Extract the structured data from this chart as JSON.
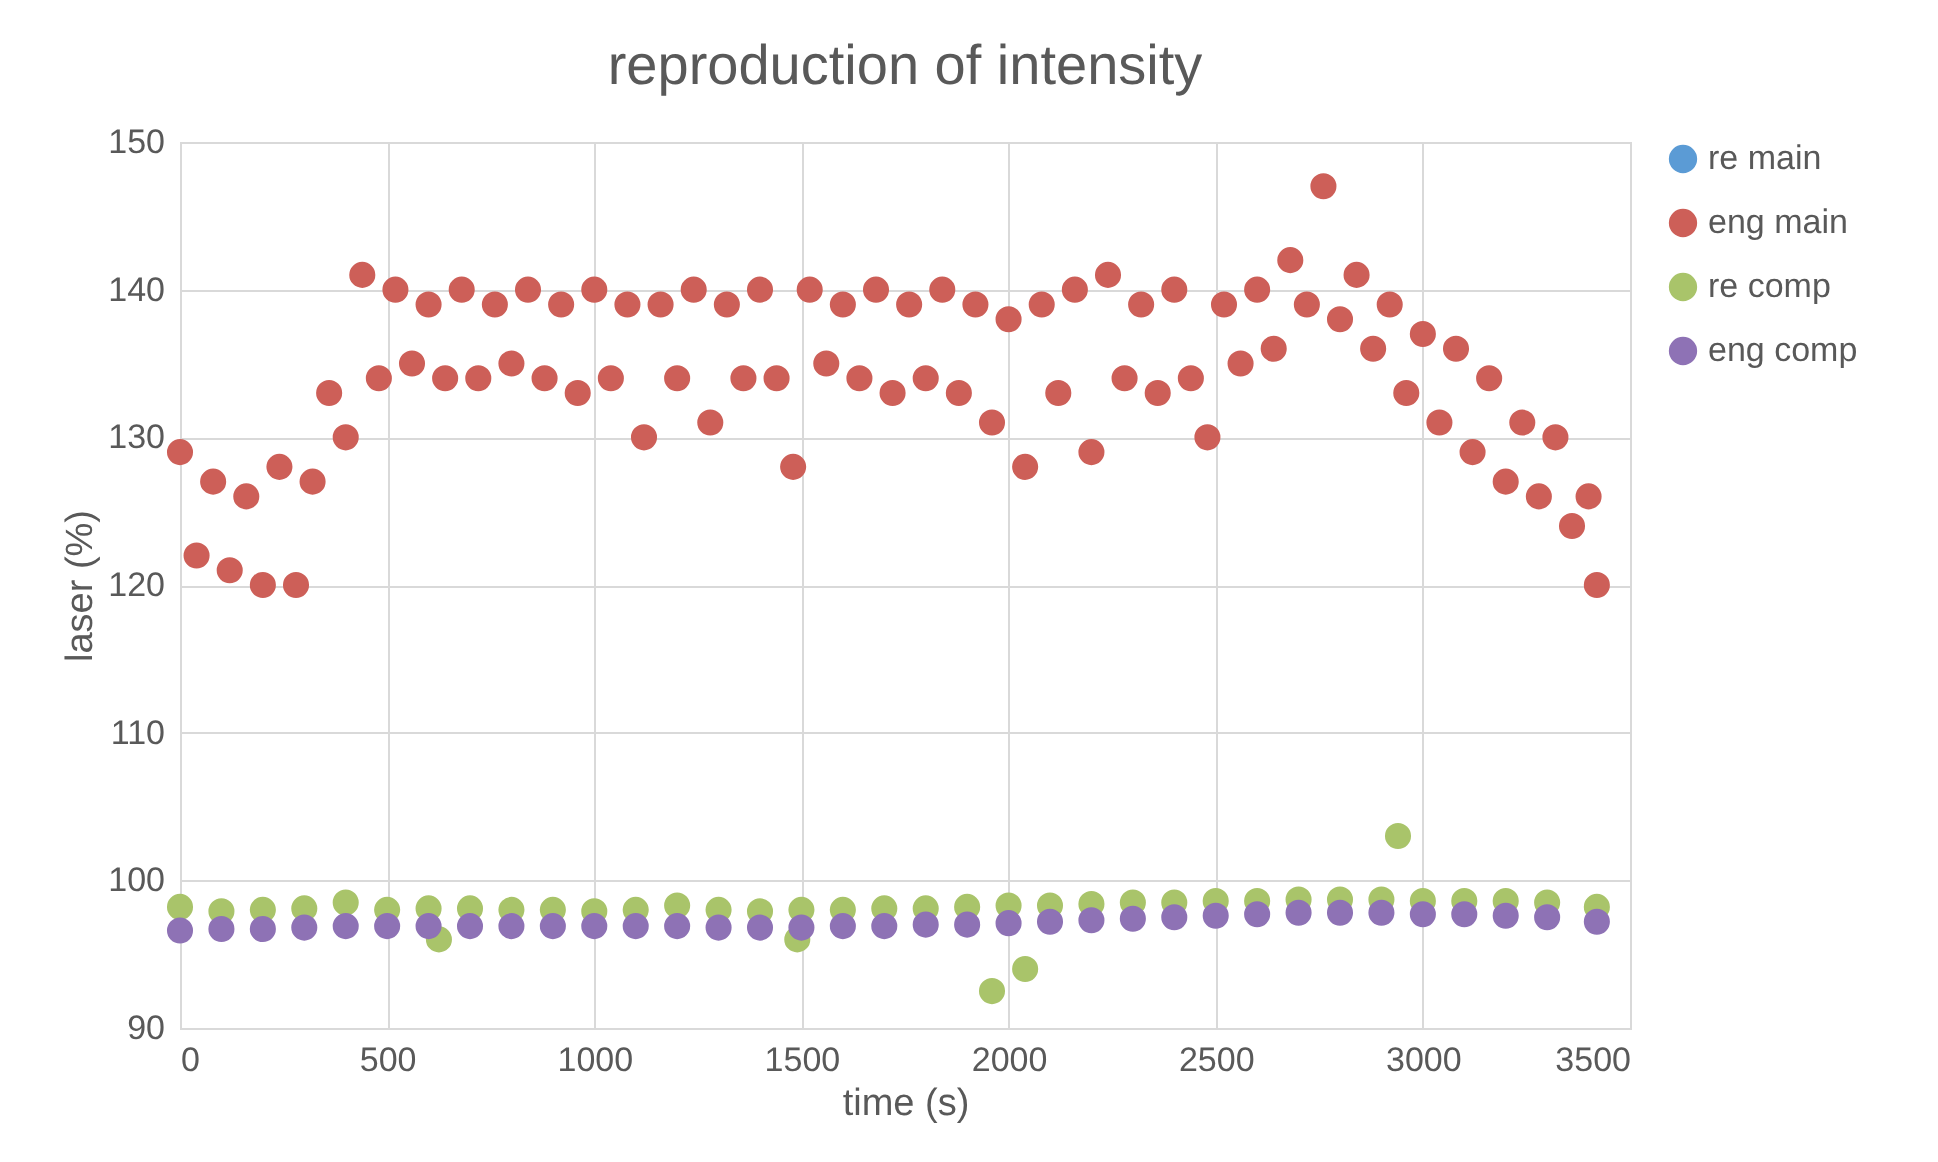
{
  "chart_data": {
    "type": "scatter",
    "title": "reproduction of intensity",
    "xlabel": "time (s)",
    "ylabel": "laser (%)",
    "xlim": [
      0,
      3500
    ],
    "xticks": [
      0,
      500,
      1000,
      1500,
      2000,
      2500,
      3000,
      3500
    ],
    "ylim": [
      90,
      150
    ],
    "yticks": [
      90,
      100,
      110,
      120,
      130,
      140,
      150
    ],
    "grid": true,
    "legend": "right",
    "marker": "circle",
    "series": [
      {
        "name": "re main",
        "color": "#5b9bd5"
      },
      {
        "name": "eng main",
        "color": "#cd5f58",
        "x": [
          0,
          40,
          80,
          120,
          160,
          200,
          240,
          280,
          320,
          360,
          400,
          440,
          480,
          520,
          560,
          600,
          640,
          680,
          720,
          760,
          800,
          840,
          880,
          920,
          960,
          1000,
          1040,
          1080,
          1120,
          1160,
          1200,
          1240,
          1280,
          1320,
          1360,
          1400,
          1440,
          1480,
          1520,
          1560,
          1600,
          1640,
          1680,
          1720,
          1760,
          1800,
          1840,
          1880,
          1920,
          1960,
          2000,
          2040,
          2080,
          2120,
          2160,
          2200,
          2240,
          2280,
          2320,
          2360,
          2400,
          2440,
          2480,
          2520,
          2560,
          2600,
          2640,
          2680,
          2720,
          2760,
          2800,
          2840,
          2880,
          2920,
          2960,
          3000,
          3040,
          3080,
          3120,
          3160,
          3200,
          3240,
          3280,
          3320,
          3360,
          3400,
          3420
        ],
        "values": [
          129,
          122,
          127,
          121,
          126,
          120,
          128,
          120,
          127,
          133,
          130,
          141,
          134,
          140,
          135,
          139,
          134,
          140,
          134,
          139,
          135,
          140,
          134,
          139,
          133,
          140,
          134,
          139,
          130,
          139,
          134,
          140,
          131,
          139,
          134,
          140,
          134,
          128,
          140,
          135,
          139,
          134,
          140,
          133,
          139,
          134,
          140,
          133,
          139,
          131,
          138,
          128,
          139,
          133,
          140,
          129,
          141,
          134,
          139,
          133,
          140,
          134,
          130,
          139,
          135,
          140,
          136,
          142,
          139,
          147,
          138,
          141,
          136,
          139,
          133,
          137,
          131,
          136,
          129,
          134,
          127,
          131,
          126,
          130,
          124,
          126,
          120
        ]
      },
      {
        "name": "re comp",
        "color": "#a9c46a",
        "x": [
          0,
          100,
          200,
          300,
          400,
          500,
          600,
          625,
          700,
          800,
          900,
          1000,
          1100,
          1200,
          1300,
          1400,
          1490,
          1500,
          1600,
          1700,
          1800,
          1900,
          1960,
          2000,
          2040,
          2100,
          2200,
          2300,
          2400,
          2500,
          2600,
          2700,
          2800,
          2900,
          2940,
          3000,
          3100,
          3200,
          3300,
          3420
        ],
        "values": [
          98.2,
          97.9,
          98.0,
          98.1,
          98.5,
          98.0,
          98.1,
          96.0,
          98.1,
          98.0,
          98.0,
          97.9,
          98.0,
          98.3,
          98.0,
          97.9,
          96.0,
          98.0,
          98.0,
          98.1,
          98.1,
          98.2,
          92.5,
          98.3,
          94.0,
          98.3,
          98.4,
          98.5,
          98.5,
          98.6,
          98.6,
          98.7,
          98.7,
          98.7,
          103.0,
          98.6,
          98.6,
          98.6,
          98.5,
          98.2
        ]
      },
      {
        "name": "eng comp",
        "color": "#8e72b5",
        "x": [
          0,
          100,
          200,
          300,
          400,
          500,
          600,
          700,
          800,
          900,
          1000,
          1100,
          1200,
          1300,
          1400,
          1500,
          1600,
          1700,
          1800,
          1900,
          2000,
          2100,
          2200,
          2300,
          2400,
          2500,
          2600,
          2700,
          2800,
          2900,
          3000,
          3100,
          3200,
          3300,
          3420
        ],
        "values": [
          96.6,
          96.7,
          96.7,
          96.8,
          96.9,
          96.9,
          96.9,
          96.9,
          96.9,
          96.9,
          96.9,
          96.9,
          96.9,
          96.8,
          96.8,
          96.8,
          96.9,
          96.9,
          97.0,
          97.0,
          97.1,
          97.2,
          97.3,
          97.4,
          97.5,
          97.6,
          97.7,
          97.8,
          97.8,
          97.8,
          97.7,
          97.7,
          97.6,
          97.5,
          97.2
        ]
      }
    ]
  }
}
